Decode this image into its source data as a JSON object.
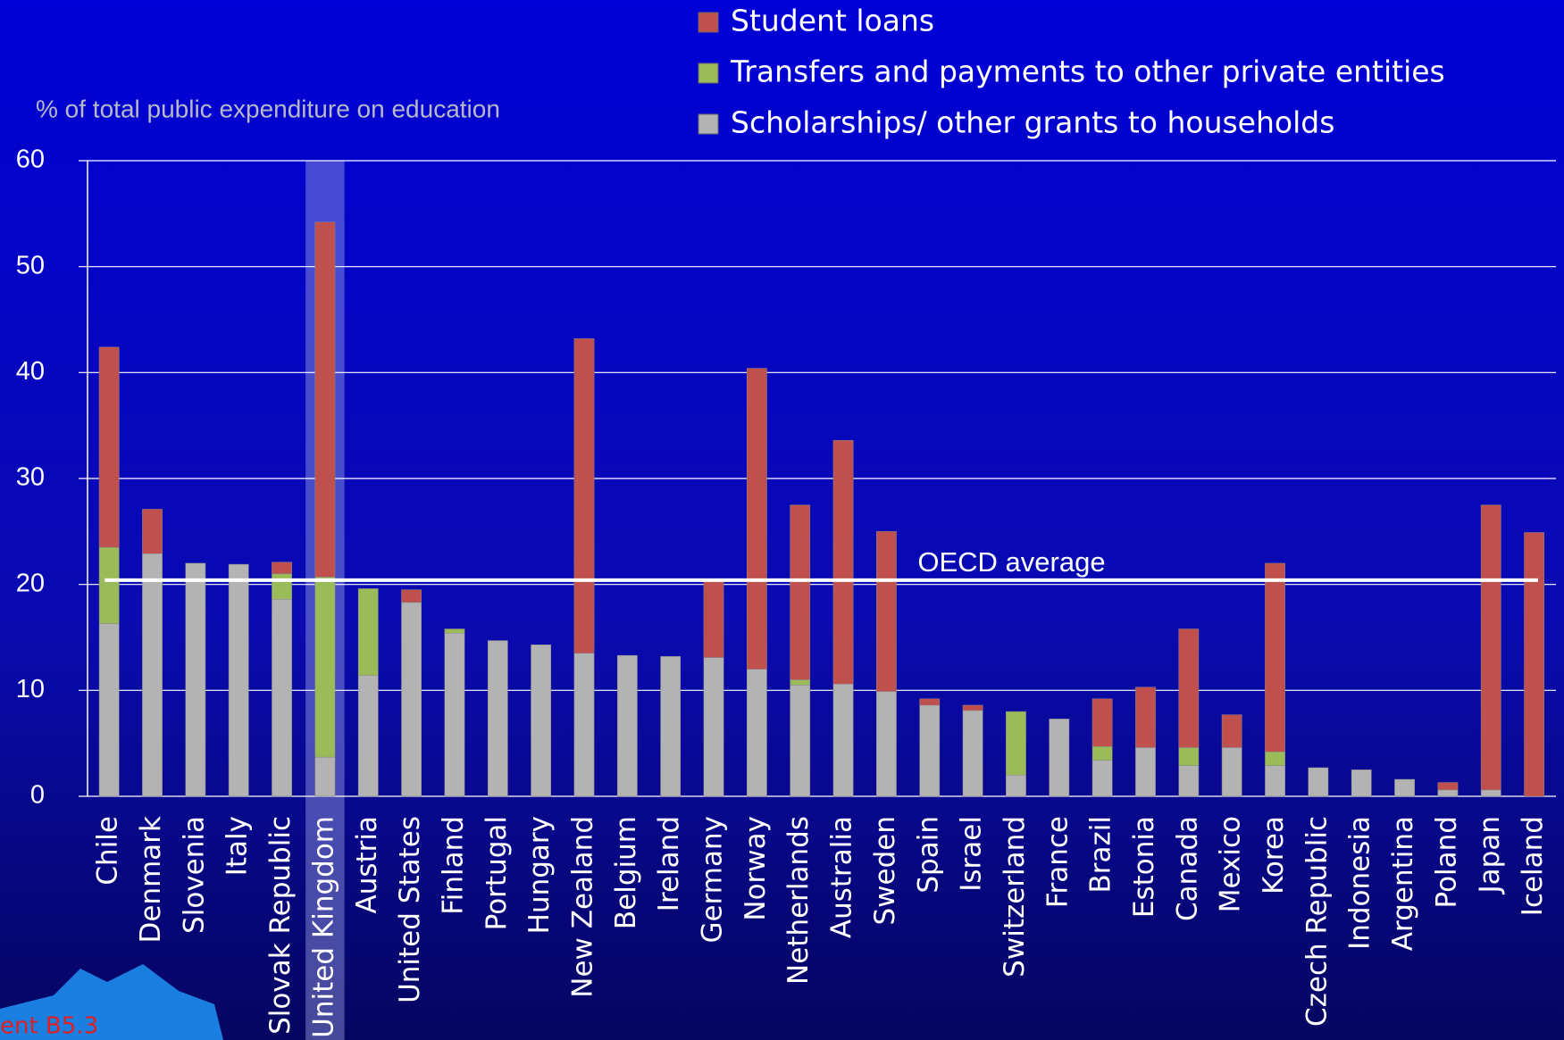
{
  "chart_data": {
    "type": "stacked_bar",
    "y_axis_label": "% of total public expenditure on education",
    "categories": [
      "Chile",
      "Denmark",
      "Slovenia",
      "Italy",
      "Slovak Republic",
      "United Kingdom",
      "Austria",
      "United States",
      "Finland",
      "Portugal",
      "Hungary",
      "New Zealand",
      "Belgium",
      "Ireland",
      "Germany",
      "Norway",
      "Netherlands",
      "Australia",
      "Sweden",
      "Spain",
      "Israel",
      "Switzerland",
      "France",
      "Brazil",
      "Estonia",
      "Canada",
      "Mexico",
      "Korea",
      "Czech Republic",
      "Indonesia",
      "Argentina",
      "Poland",
      "Japan",
      "Iceland"
    ],
    "series": [
      {
        "name": "Scholarships/ other grants to households",
        "color": "#b3b3b3",
        "values": [
          16.3,
          22.9,
          22.0,
          21.9,
          18.6,
          3.7,
          11.4,
          18.3,
          15.4,
          14.7,
          14.3,
          13.5,
          13.3,
          13.2,
          13.1,
          12.0,
          10.5,
          10.6,
          9.9,
          8.6,
          8.1,
          2.0,
          7.3,
          3.4,
          4.6,
          2.9,
          4.6,
          2.9,
          2.7,
          2.5,
          1.6,
          0.6,
          0.6,
          0
        ]
      },
      {
        "name": "Transfers and payments to other private entities",
        "color": "#9bbb59",
        "values": [
          7.2,
          0,
          0,
          0,
          2.4,
          17.0,
          8.2,
          0,
          0.4,
          0,
          0,
          0,
          0,
          0,
          0,
          0,
          0.5,
          0,
          0,
          0,
          0,
          6.0,
          0,
          1.3,
          0,
          1.7,
          0,
          1.3,
          0,
          0,
          0,
          0,
          0,
          0
        ]
      },
      {
        "name": "Student loans",
        "color": "#c0504d",
        "values": [
          18.9,
          4.2,
          0,
          0,
          1.1,
          33.5,
          0,
          1.2,
          0,
          0,
          0,
          29.7,
          0,
          0,
          7.2,
          28.4,
          16.5,
          23.0,
          15.1,
          0.6,
          0.5,
          0,
          0,
          4.5,
          5.7,
          11.2,
          3.1,
          17.8,
          0,
          0,
          0,
          0.7,
          26.9,
          24.9
        ]
      }
    ],
    "ylim": [
      0,
      60
    ],
    "yticks": [
      0,
      10,
      20,
      30,
      40,
      50,
      60
    ],
    "grid": true,
    "highlight_index": 5,
    "reference_line": {
      "label": "OECD average",
      "value": 20.4,
      "color": "#ffffff"
    },
    "badge": "ent B5.3"
  }
}
